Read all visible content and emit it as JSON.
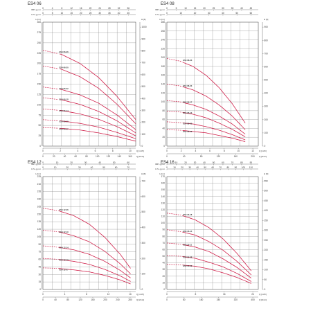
{
  "colors": {
    "curve": "#d0204a",
    "grid": "#8a8a8a",
    "axis": "#444444",
    "text": "#333333"
  },
  "chart_data": [
    {
      "type": "line",
      "title": "ES4 06",
      "top_axes": [
        {
          "label": "IMP. g.p.m.",
          "ticks": [
            "0",
            "4",
            "8",
            "12",
            "16",
            "20",
            "24",
            "28",
            "32",
            "36"
          ]
        },
        {
          "label": "U.S. g.p.m.",
          "ticks": [
            "0",
            "5",
            "10",
            "15",
            "20",
            "25",
            "30",
            "35",
            "40",
            "45"
          ]
        }
      ],
      "bottom_axes": [
        {
          "label": "Q [m³/h]",
          "ticks": [
            "0",
            "2",
            "4",
            "6",
            "8",
            "10"
          ]
        },
        {
          "label": "Q [l/min]",
          "ticks": [
            "0",
            "20",
            "40",
            "60",
            "80",
            "100",
            "120",
            "140",
            "160"
          ]
        }
      ],
      "left_axis": {
        "label": "H [m]",
        "ticks": [
          "0",
          "25",
          "50",
          "75",
          "100",
          "125",
          "150",
          "175",
          "200",
          "225",
          "250",
          "275",
          "300"
        ]
      },
      "right_axes": [
        {
          "label": "H [ft]",
          "ticks": [
            "0",
            "100",
            "200",
            "300",
            "400",
            "500",
            "600",
            "700",
            "800",
            "900",
            "1000"
          ]
        }
      ],
      "xlim": [
        0,
        10
      ],
      "ylim": [
        0,
        300
      ],
      "series": [
        {
          "name": "ES4 06-36",
          "x": [
            0,
            2,
            4,
            6,
            8,
            10
          ],
          "y": [
            232,
            222,
            200,
            166,
            120,
            64
          ]
        },
        {
          "name": "ES4 06-30",
          "x": [
            0,
            2,
            4,
            6,
            8,
            10
          ],
          "y": [
            194,
            186,
            168,
            140,
            101,
            54
          ]
        },
        {
          "name": "ES4 06-22",
          "x": [
            0,
            2,
            4,
            6,
            8,
            10
          ],
          "y": [
            143,
            137,
            124,
            104,
            75,
            40
          ]
        },
        {
          "name": "ES4 06-18",
          "x": [
            0,
            2,
            4,
            6,
            8,
            10
          ],
          "y": [
            117,
            112,
            101,
            84,
            61,
            32
          ]
        },
        {
          "name": "ES4 06-14",
          "x": [
            0,
            2,
            4,
            6,
            8,
            10
          ],
          "y": [
            90,
            86,
            78,
            65,
            47,
            25
          ]
        },
        {
          "name": "ES4 06-10",
          "x": [
            0,
            2,
            4,
            6,
            8,
            10
          ],
          "y": [
            64,
            61,
            55,
            46,
            33,
            18
          ]
        },
        {
          "name": "ES4 06-07",
          "x": [
            0,
            2,
            4,
            6,
            8,
            10
          ],
          "y": [
            45,
            43,
            39,
            32,
            23,
            12
          ]
        }
      ]
    },
    {
      "type": "line",
      "title": "ES4 08",
      "top_axes": [
        {
          "label": "IMP. g.p.m.",
          "ticks": [
            "0",
            "5",
            "10",
            "15",
            "20",
            "25",
            "30",
            "35",
            "40",
            "45"
          ]
        },
        {
          "label": "U.S. g.p.m.",
          "ticks": [
            "0",
            "10",
            "20",
            "30",
            "40",
            "50",
            "60"
          ]
        }
      ],
      "bottom_axes": [
        {
          "label": "Q [m³/h]",
          "ticks": [
            "0",
            "2",
            "4",
            "6",
            "8",
            "10",
            "12"
          ]
        },
        {
          "label": "Q [l/min]",
          "ticks": [
            "0",
            "40",
            "80",
            "120",
            "160",
            "200"
          ]
        }
      ],
      "left_axis": {
        "label": "H [m]",
        "ticks": [
          "0",
          "20",
          "40",
          "60",
          "80",
          "100",
          "120",
          "140",
          "160",
          "180",
          "200",
          "220",
          "240",
          "260",
          "280"
        ]
      },
      "right_axes": [
        {
          "label": "H [ft]",
          "ticks": [
            "0",
            "100",
            "200",
            "300",
            "400",
            "500",
            "600",
            "700",
            "800",
            "900"
          ]
        }
      ],
      "xlim": [
        0,
        14
      ],
      "ylim": [
        0,
        280
      ],
      "series": [
        {
          "name": "ES4 08-33",
          "x": [
            0,
            2,
            4,
            6,
            8,
            10,
            12
          ],
          "y": [
            198,
            192,
            180,
            160,
            132,
            96,
            52
          ]
        },
        {
          "name": "ES4 08-23",
          "x": [
            0,
            2,
            4,
            6,
            8,
            10,
            12
          ],
          "y": [
            140,
            136,
            127,
            113,
            93,
            68,
            37
          ]
        },
        {
          "name": "ES4 08-17",
          "x": [
            0,
            2,
            4,
            6,
            8,
            10,
            12
          ],
          "y": [
            103,
            100,
            93,
            83,
            68,
            50,
            27
          ]
        },
        {
          "name": "ES4 08-13",
          "x": [
            0,
            2,
            4,
            6,
            8,
            10,
            12
          ],
          "y": [
            79,
            77,
            72,
            64,
            52,
            38,
            21
          ]
        },
        {
          "name": "ES4 08-09",
          "x": [
            0,
            2,
            4,
            6,
            8,
            10,
            12
          ],
          "y": [
            55,
            53,
            50,
            44,
            36,
            26,
            14
          ]
        },
        {
          "name": "ES4 08-06",
          "x": [
            0,
            2,
            4,
            6,
            8,
            10,
            12
          ],
          "y": [
            37,
            36,
            33,
            30,
            24,
            18,
            10
          ]
        }
      ]
    },
    {
      "type": "line",
      "title": "ES4 12",
      "top_axes": [
        {
          "label": "IMP. g.p.m.",
          "ticks": [
            "0",
            "10",
            "20",
            "30",
            "40",
            "50",
            "60"
          ]
        },
        {
          "label": "U.S. g.p.m.",
          "ticks": [
            "0",
            "10",
            "20",
            "30",
            "40",
            "50",
            "60",
            "70"
          ]
        }
      ],
      "bottom_axes": [
        {
          "label": "Q [m³/h]",
          "ticks": [
            "0",
            "4",
            "8",
            "12",
            "16"
          ]
        },
        {
          "label": "Q [l/min]",
          "ticks": [
            "0",
            "40",
            "80",
            "120",
            "160",
            "200",
            "240",
            "280"
          ]
        }
      ],
      "left_axis": {
        "label": "H [m]",
        "ticks": [
          "0",
          "15",
          "30",
          "45",
          "60",
          "75",
          "90",
          "105",
          "120",
          "135",
          "150",
          "165",
          "180",
          "195",
          "210",
          "225"
        ]
      },
      "right_axes": [
        {
          "label": "H [ft]",
          "ticks": [
            "0",
            "100",
            "200",
            "300",
            "400",
            "500",
            "600",
            "700"
          ]
        }
      ],
      "xlim": [
        0,
        18
      ],
      "ylim": [
        0,
        225
      ],
      "series": [
        {
          "name": "ES4 12-26",
          "x": [
            0,
            3,
            6,
            9,
            12,
            15,
            17
          ],
          "y": [
            162,
            157,
            147,
            130,
            104,
            70,
            42
          ]
        },
        {
          "name": "ES4 12-19",
          "x": [
            0,
            3,
            6,
            9,
            12,
            15,
            17
          ],
          "y": [
            118,
            115,
            107,
            95,
            76,
            51,
            31
          ]
        },
        {
          "name": "ES4 12-14",
          "x": [
            0,
            3,
            6,
            9,
            12,
            15,
            17
          ],
          "y": [
            87,
            84,
            79,
            70,
            56,
            38,
            23
          ]
        },
        {
          "name": "ES4 12-10",
          "x": [
            0,
            3,
            6,
            9,
            12,
            15,
            17
          ],
          "y": [
            62,
            60,
            56,
            50,
            40,
            27,
            16
          ]
        },
        {
          "name": "ES4 12-07",
          "x": [
            0,
            3,
            6,
            9,
            12,
            15,
            17
          ],
          "y": [
            43,
            42,
            39,
            35,
            28,
            19,
            11
          ]
        }
      ]
    },
    {
      "type": "line",
      "title": "ES4 16",
      "top_axes": [
        {
          "label": "IMP. g.p.m.",
          "ticks": [
            "0",
            "10",
            "20",
            "30",
            "40",
            "50",
            "60",
            "70",
            "80",
            "90"
          ]
        },
        {
          "label": "U.S. g.p.m.",
          "ticks": [
            "0",
            "10",
            "20",
            "30",
            "40",
            "50",
            "60",
            "70",
            "80",
            "90",
            "100",
            "110"
          ]
        }
      ],
      "bottom_axes": [
        {
          "label": "Q [m³/h]",
          "ticks": [
            "0",
            "8",
            "16",
            "24"
          ]
        },
        {
          "label": "Q [l/min]",
          "ticks": [
            "0",
            "80",
            "160",
            "240",
            "320",
            "400"
          ]
        }
      ],
      "left_axis": {
        "label": "H [m]",
        "ticks": [
          "0",
          "10",
          "20",
          "30",
          "40",
          "50",
          "60",
          "70",
          "80",
          "90",
          "100",
          "110",
          "120",
          "130",
          "140",
          "150",
          "160",
          "170"
        ]
      },
      "right_axes": [
        {
          "label": "H [ft]",
          "ticks": [
            "0",
            "50",
            "100",
            "150",
            "200",
            "250",
            "300",
            "350",
            "400",
            "450",
            "500",
            "550"
          ]
        }
      ],
      "xlim": [
        0,
        26
      ],
      "ylim": [
        0,
        170
      ],
      "series": [
        {
          "name": "ES4 16-18",
          "x": [
            0,
            4,
            8,
            12,
            16,
            20,
            24
          ],
          "y": [
            115,
            112,
            105,
            93,
            76,
            54,
            28
          ]
        },
        {
          "name": "ES4 16-14",
          "x": [
            0,
            4,
            8,
            12,
            16,
            20,
            24
          ],
          "y": [
            90,
            87,
            82,
            72,
            59,
            42,
            22
          ]
        },
        {
          "name": "ES4 16-11",
          "x": [
            0,
            4,
            8,
            12,
            16,
            20,
            24
          ],
          "y": [
            70,
            68,
            64,
            57,
            46,
            33,
            17
          ]
        },
        {
          "name": "ES4 16-08",
          "x": [
            0,
            4,
            8,
            12,
            16,
            20,
            24
          ],
          "y": [
            51,
            50,
            47,
            41,
            34,
            24,
            12
          ]
        },
        {
          "name": "ES4 16-06",
          "x": [
            0,
            4,
            8,
            12,
            16,
            20,
            24
          ],
          "y": [
            38,
            37,
            35,
            31,
            25,
            18,
            9
          ]
        }
      ]
    }
  ]
}
